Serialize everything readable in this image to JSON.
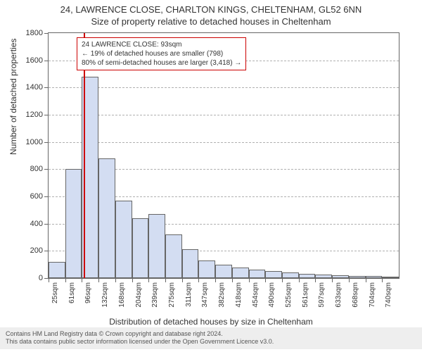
{
  "header": {
    "address": "24, LAWRENCE CLOSE, CHARLTON KINGS, CHELTENHAM, GL52 6NN",
    "subtitle": "Size of property relative to detached houses in Cheltenham"
  },
  "chart": {
    "type": "histogram",
    "background_color": "#ffffff",
    "border_color": "#666666",
    "grid_color": "#b0b0b0",
    "bar_fill_color": "#d3ddf2",
    "bar_border_color": "#666666",
    "marker_color": "#cc0000",
    "text_color": "#333333",
    "y_axis": {
      "title": "Number of detached properties",
      "min": 0,
      "max": 1800,
      "step": 200,
      "labels": [
        "0",
        "200",
        "400",
        "600",
        "800",
        "1000",
        "1200",
        "1400",
        "1600",
        "1800"
      ],
      "title_fontsize": 12,
      "label_fontsize": 11
    },
    "x_axis": {
      "title": "Distribution of detached houses by size in Cheltenham",
      "labels": [
        "25sqm",
        "61sqm",
        "96sqm",
        "132sqm",
        "168sqm",
        "204sqm",
        "239sqm",
        "275sqm",
        "311sqm",
        "347sqm",
        "382sqm",
        "418sqm",
        "454sqm",
        "490sqm",
        "525sqm",
        "561sqm",
        "597sqm",
        "633sqm",
        "668sqm",
        "704sqm",
        "740sqm"
      ],
      "title_fontsize": 12,
      "label_fontsize": 10
    },
    "bars": [
      120,
      800,
      1480,
      880,
      570,
      440,
      470,
      320,
      210,
      130,
      100,
      80,
      60,
      50,
      40,
      30,
      25,
      20,
      15,
      15,
      10
    ],
    "marker": {
      "category_index": 2,
      "label": "93sqm"
    },
    "annotation": {
      "lines": [
        "24 LAWRENCE CLOSE: 93sqm",
        "← 19% of detached houses are smaller (798)",
        "80% of semi-detached houses are larger (3,418) →"
      ],
      "border_color": "#cc0000",
      "fontsize": 10
    }
  },
  "attribution": {
    "line1": "Contains HM Land Registry data © Crown copyright and database right 2024.",
    "line2": "This data contains public sector information licensed under the Open Government Licence v3.0.",
    "background_color": "#eeeeee",
    "fontsize": 9
  }
}
